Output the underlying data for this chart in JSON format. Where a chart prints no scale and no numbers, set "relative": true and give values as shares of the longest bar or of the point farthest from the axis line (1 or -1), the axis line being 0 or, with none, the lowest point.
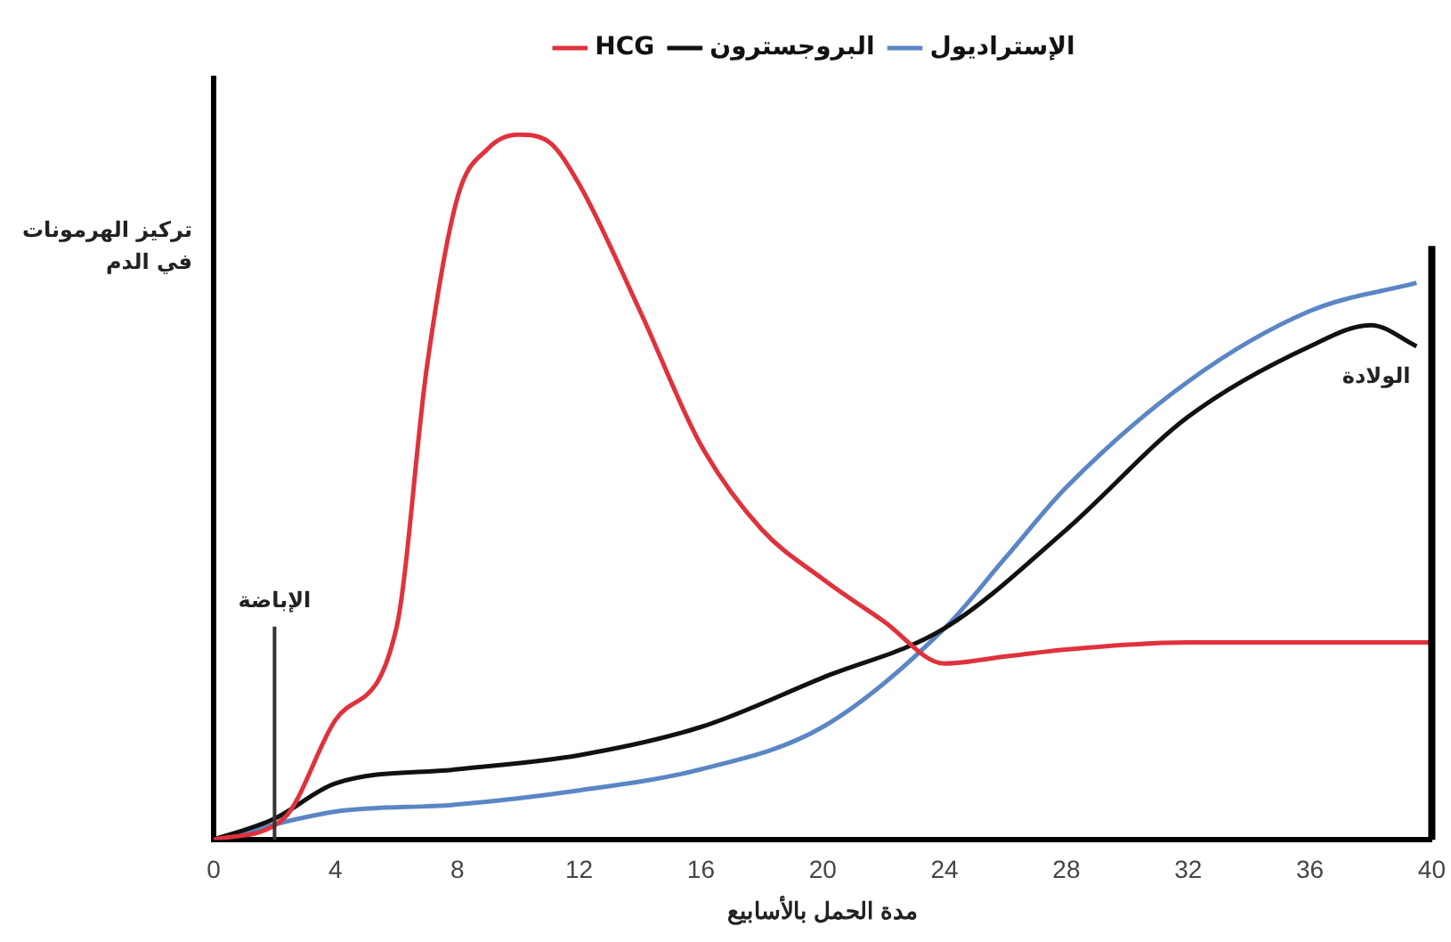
{
  "chart_data": {
    "type": "line",
    "relative": true,
    "xlabel": "مدة الحمل بالأسابيع",
    "ylabel": "تركيز الهرمونات في الدم",
    "xlim": [
      0,
      40
    ],
    "xticks": [
      0,
      4,
      8,
      12,
      16,
      20,
      24,
      28,
      32,
      36,
      40
    ],
    "grid": false,
    "legend": "top",
    "marker": "none",
    "line_style": "solid",
    "series": [
      {
        "name": "HCG",
        "color": "#e0323c",
        "x": [
          0,
          2.3,
          4,
          6,
          7,
          8,
          9,
          10,
          11,
          12,
          14,
          16,
          18,
          20,
          22,
          24,
          26,
          28,
          32,
          36,
          40
        ],
        "values": [
          0,
          0.03,
          0.17,
          0.3,
          0.67,
          0.91,
          0.98,
          1,
          0.99,
          0.93,
          0.75,
          0.56,
          0.44,
          0.37,
          0.31,
          0.25,
          0.26,
          0.27,
          0.28,
          0.28,
          0.28
        ]
      },
      {
        "name": "البروجسترون",
        "color": "#111111",
        "x": [
          0,
          2,
          4,
          8,
          12,
          16,
          20,
          24,
          28,
          32,
          36,
          38,
          39.5
        ],
        "values": [
          0,
          0.03,
          0.08,
          0.1,
          0.12,
          0.16,
          0.23,
          0.3,
          0.44,
          0.6,
          0.7,
          0.73,
          0.7
        ]
      },
      {
        "name": "الإستراديول",
        "color": "#5b86c5",
        "x": [
          0,
          4,
          8,
          12,
          16,
          20,
          24,
          26,
          28,
          32,
          36,
          39.5
        ],
        "values": [
          0,
          0.04,
          0.05,
          0.07,
          0.1,
          0.16,
          0.3,
          0.4,
          0.5,
          0.65,
          0.75,
          0.79
        ]
      }
    ],
    "ref_lines": [
      {
        "axis": "x",
        "value": 2,
        "label": "الإباضة",
        "color": "#333333"
      },
      {
        "axis": "x",
        "value": 40,
        "label": "الولادة",
        "color": "#000000"
      }
    ]
  }
}
